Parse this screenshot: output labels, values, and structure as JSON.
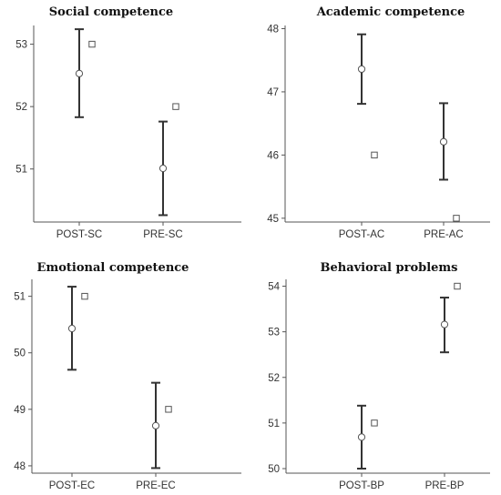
{
  "figure": {
    "background": "#ffffff",
    "axis_color": "#555555",
    "errorbar_color": "#333333",
    "marker_stroke": "#555555"
  },
  "chart_data": [
    {
      "type": "errorbar",
      "title": "Social competence",
      "categories": [
        "POST-SC",
        "PRE-SC"
      ],
      "ylim": [
        50.15,
        53.3
      ],
      "yticks": [
        51,
        52,
        53
      ],
      "series": [
        {
          "marker": "circle",
          "values": [
            52.53,
            51.01
          ],
          "error_low": [
            51.83,
            50.26
          ],
          "error_high": [
            53.24,
            51.76
          ]
        },
        {
          "marker": "square",
          "values": [
            53.0,
            52.0
          ]
        }
      ]
    },
    {
      "type": "errorbar",
      "title": "Academic competence",
      "categories": [
        "POST-AC",
        "PRE-AC"
      ],
      "ylim": [
        44.94,
        48.05
      ],
      "yticks": [
        45,
        46,
        47,
        48
      ],
      "series": [
        {
          "marker": "circle",
          "values": [
            47.36,
            46.21
          ],
          "error_low": [
            46.81,
            45.61
          ],
          "error_high": [
            47.91,
            46.82
          ]
        },
        {
          "marker": "square",
          "values": [
            46.0,
            45.0
          ]
        }
      ]
    },
    {
      "type": "errorbar",
      "title": "Emotional competence",
      "categories": [
        "POST-EC",
        "PRE-EC"
      ],
      "ylim": [
        47.87,
        51.3
      ],
      "yticks": [
        48,
        49,
        50,
        51
      ],
      "series": [
        {
          "marker": "circle",
          "values": [
            50.43,
            48.71
          ],
          "error_low": [
            49.7,
            47.96
          ],
          "error_high": [
            51.17,
            49.47
          ]
        },
        {
          "marker": "square",
          "values": [
            51.0,
            49.0
          ]
        }
      ]
    },
    {
      "type": "errorbar",
      "title": "Behavioral problems",
      "categories": [
        "POST-BP",
        "PRE-BP"
      ],
      "ylim": [
        49.9,
        54.15
      ],
      "yticks": [
        50,
        51,
        52,
        53,
        54
      ],
      "series": [
        {
          "marker": "circle",
          "values": [
            50.69,
            53.16
          ],
          "error_low": [
            50.0,
            52.55
          ],
          "error_high": [
            51.38,
            53.75
          ]
        },
        {
          "marker": "square",
          "values": [
            51.0,
            54.0
          ]
        }
      ]
    }
  ]
}
